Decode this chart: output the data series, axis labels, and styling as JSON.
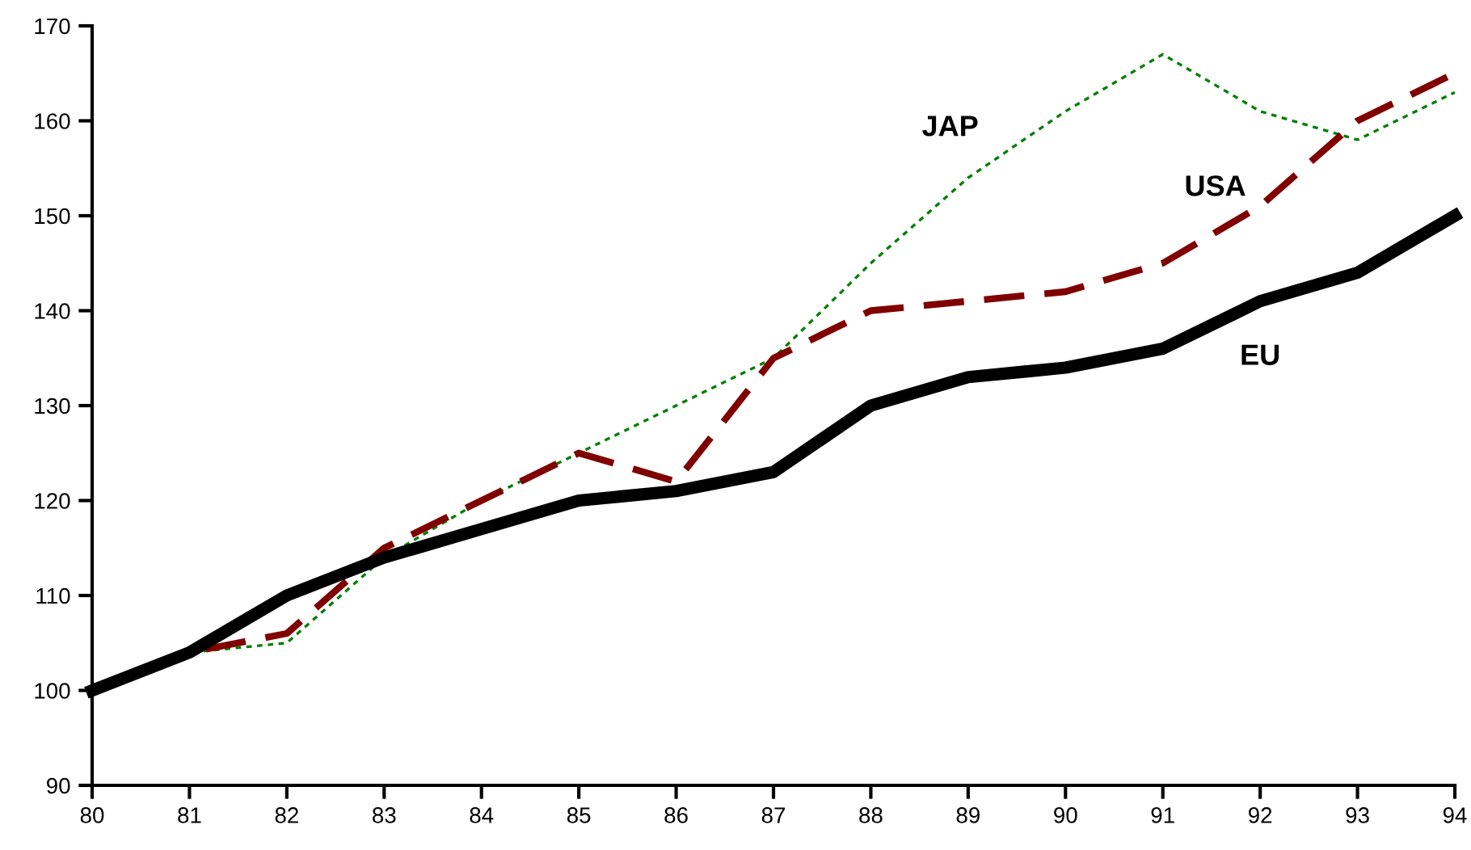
{
  "chart_data": {
    "type": "line",
    "x": [
      80,
      81,
      82,
      83,
      84,
      85,
      86,
      87,
      88,
      89,
      90,
      91,
      92,
      93,
      94
    ],
    "series": [
      {
        "name": "EU",
        "color": "#000000",
        "line_style": "solid",
        "values": [
          100,
          104,
          110,
          114,
          117,
          120,
          121,
          123,
          130,
          133,
          134,
          136,
          141,
          144,
          150
        ]
      },
      {
        "name": "USA",
        "color": "#800000",
        "line_style": "dashed",
        "values": [
          100,
          104,
          106,
          115,
          120,
          125,
          122,
          135,
          140,
          141,
          142,
          145,
          151,
          160,
          165
        ]
      },
      {
        "name": "JAP",
        "color": "#008000",
        "line_style": "dotted",
        "values": [
          100,
          104,
          105,
          114,
          120,
          125,
          130,
          135,
          145,
          154,
          161,
          167,
          161,
          158,
          163
        ]
      }
    ],
    "xlim": [
      80,
      94
    ],
    "xticks": [
      80,
      81,
      82,
      83,
      84,
      85,
      86,
      87,
      88,
      89,
      90,
      91,
      92,
      93,
      94
    ],
    "ylim": [
      90,
      170
    ],
    "yticks": [
      90,
      100,
      110,
      120,
      130,
      140,
      150,
      160,
      170
    ],
    "grid": false,
    "legend": false,
    "marker": "none"
  }
}
